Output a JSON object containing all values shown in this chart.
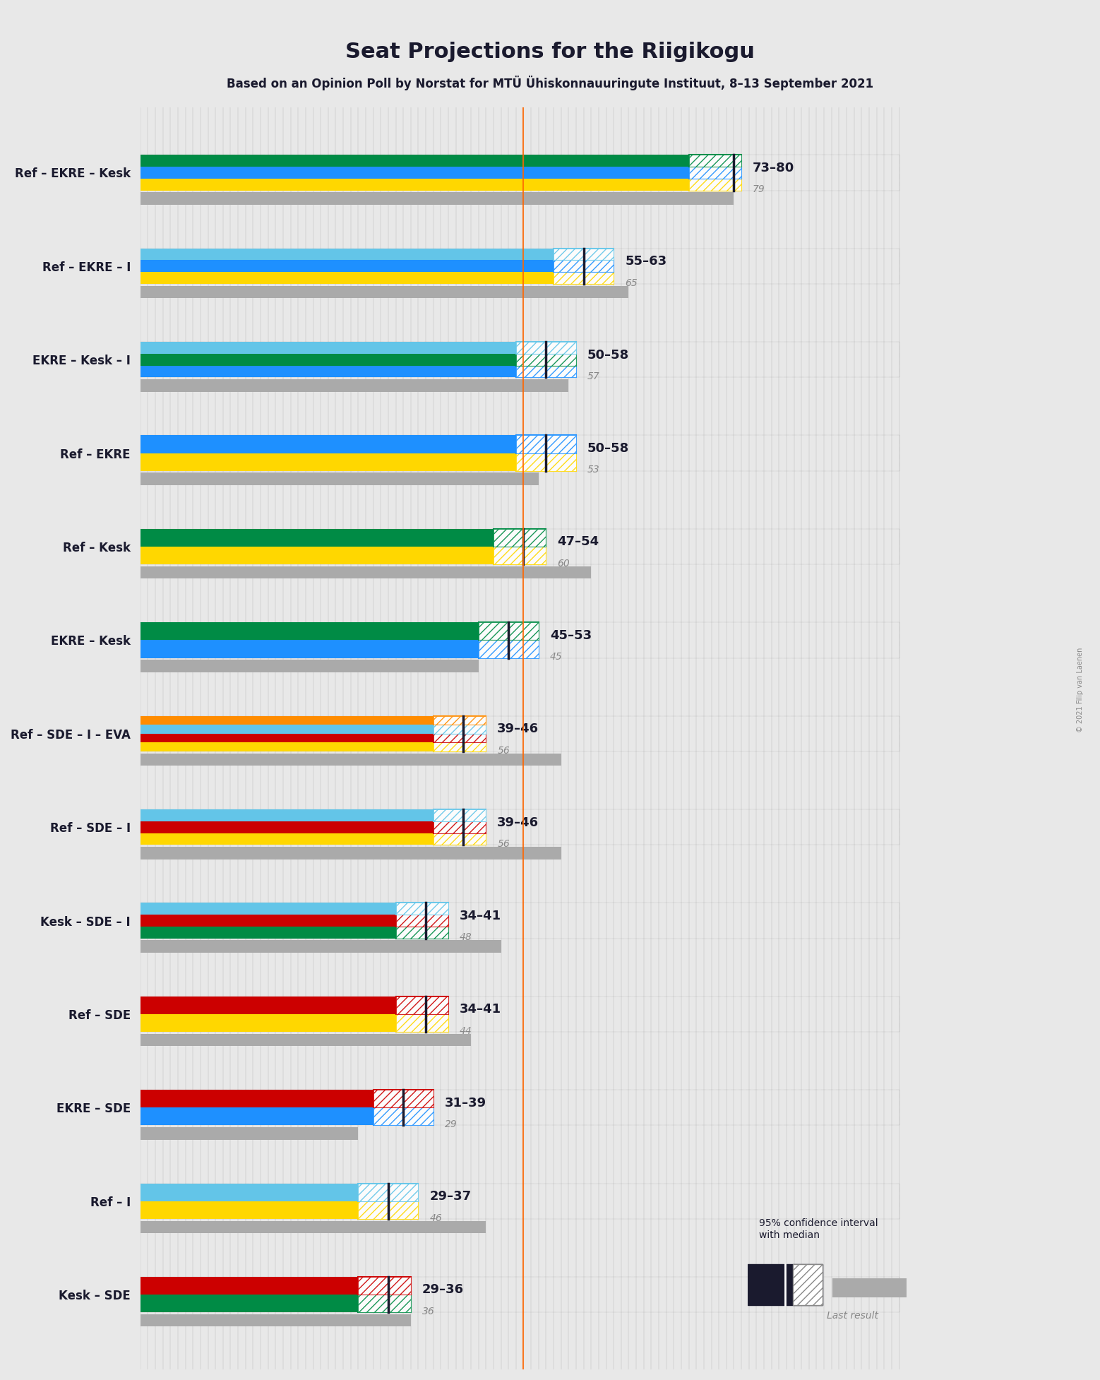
{
  "title": "Seat Projections for the Riigikogu",
  "subtitle": "Based on an Opinion Poll by Norstat for MTÜ Ühiskonnauuringute Instituut, 8–13 September 2021",
  "copyright": "© 2021 Filip van Laenen",
  "majority_line": 51,
  "x_max": 101,
  "coalitions": [
    {
      "label": "Ref – EKRE – Kesk",
      "underline": false,
      "parties": [
        "Ref",
        "EKRE",
        "Kesk"
      ],
      "ci_low": 73,
      "ci_high": 80,
      "median": 79,
      "last_result": 79,
      "range_label": "73–80"
    },
    {
      "label": "Ref – EKRE – I",
      "underline": false,
      "parties": [
        "Ref",
        "EKRE",
        "I"
      ],
      "ci_low": 55,
      "ci_high": 63,
      "median": 59,
      "last_result": 65,
      "range_label": "55–63"
    },
    {
      "label": "EKRE – Kesk – I",
      "underline": true,
      "parties": [
        "EKRE",
        "Kesk",
        "I"
      ],
      "ci_low": 50,
      "ci_high": 58,
      "median": 54,
      "last_result": 57,
      "range_label": "50–58"
    },
    {
      "label": "Ref – EKRE",
      "underline": false,
      "parties": [
        "Ref",
        "EKRE"
      ],
      "ci_low": 50,
      "ci_high": 58,
      "median": 54,
      "last_result": 53,
      "range_label": "50–58"
    },
    {
      "label": "Ref – Kesk",
      "underline": false,
      "parties": [
        "Ref",
        "Kesk"
      ],
      "ci_low": 47,
      "ci_high": 54,
      "median": 51,
      "last_result": 60,
      "range_label": "47–54"
    },
    {
      "label": "EKRE – Kesk",
      "underline": false,
      "parties": [
        "EKRE",
        "Kesk"
      ],
      "ci_low": 45,
      "ci_high": 53,
      "median": 49,
      "last_result": 45,
      "range_label": "45–53"
    },
    {
      "label": "Ref – SDE – I – EVA",
      "underline": false,
      "parties": [
        "Ref",
        "SDE",
        "I",
        "EVA"
      ],
      "ci_low": 39,
      "ci_high": 46,
      "median": 43,
      "last_result": 56,
      "range_label": "39–46"
    },
    {
      "label": "Ref – SDE – I",
      "underline": false,
      "parties": [
        "Ref",
        "SDE",
        "I"
      ],
      "ci_low": 39,
      "ci_high": 46,
      "median": 43,
      "last_result": 56,
      "range_label": "39–46"
    },
    {
      "label": "Kesk – SDE – I",
      "underline": false,
      "parties": [
        "Kesk",
        "SDE",
        "I"
      ],
      "ci_low": 34,
      "ci_high": 41,
      "median": 38,
      "last_result": 48,
      "range_label": "34–41"
    },
    {
      "label": "Ref – SDE",
      "underline": false,
      "parties": [
        "Ref",
        "SDE"
      ],
      "ci_low": 34,
      "ci_high": 41,
      "median": 38,
      "last_result": 44,
      "range_label": "34–41"
    },
    {
      "label": "EKRE – SDE",
      "underline": false,
      "parties": [
        "EKRE",
        "SDE"
      ],
      "ci_low": 31,
      "ci_high": 39,
      "median": 35,
      "last_result": 29,
      "range_label": "31–39"
    },
    {
      "label": "Ref – I",
      "underline": false,
      "parties": [
        "Ref",
        "I"
      ],
      "ci_low": 29,
      "ci_high": 37,
      "median": 33,
      "last_result": 46,
      "range_label": "29–37"
    },
    {
      "label": "Kesk – SDE",
      "underline": false,
      "parties": [
        "Kesk",
        "SDE"
      ],
      "ci_low": 29,
      "ci_high": 36,
      "median": 33,
      "last_result": 36,
      "range_label": "29–36"
    }
  ],
  "party_colors": {
    "Ref": "#FFD700",
    "EKRE": "#1E90FF",
    "Kesk": "#008B45",
    "SDE": "#CC0000",
    "I": "#63C5E8",
    "EVA": "#FF8C00"
  },
  "bg_color": "#E8E8E8",
  "bar_bg_color": "#D0D0D0",
  "majority_color": "#FF6600"
}
